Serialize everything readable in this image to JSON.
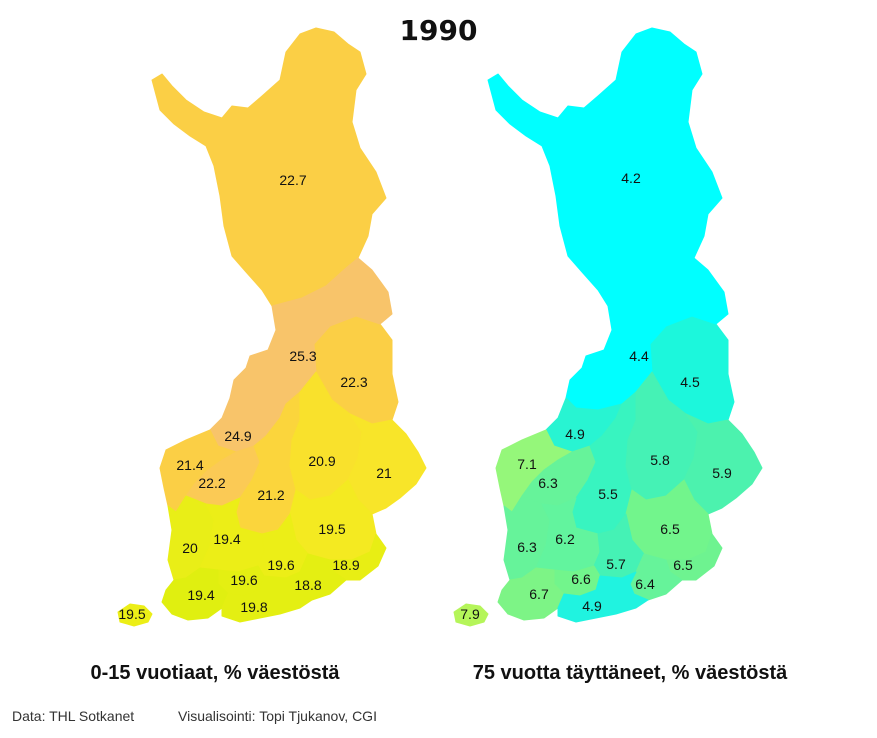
{
  "title": "1990",
  "maps": [
    {
      "caption": "0-15 vuotiaat, % väestöstä",
      "regions": [
        {
          "id": "lappi",
          "value": "22.7",
          "color": "#fbcf45"
        },
        {
          "id": "kainuu",
          "value": "22.3",
          "color": "#fbcf45"
        },
        {
          "id": "pohjois-pohjanmaa",
          "value": "25.3",
          "color": "#f8c46a"
        },
        {
          "id": "keski-pohjanmaa",
          "value": "24.9",
          "color": "#f8c46a"
        },
        {
          "id": "pohjanmaa",
          "value": "21.4",
          "color": "#fbcf45"
        },
        {
          "id": "etela-pohjanmaa",
          "value": "22.2",
          "color": "#fbca55"
        },
        {
          "id": "keski-suomi",
          "value": "21.2",
          "color": "#fbd53c"
        },
        {
          "id": "pohjois-savo",
          "value": "20.9",
          "color": "#f9e12c"
        },
        {
          "id": "pohjois-karjala",
          "value": "21",
          "color": "#f8e529"
        },
        {
          "id": "etela-savo",
          "value": "19.5",
          "color": "#f4ea21"
        },
        {
          "id": "satakunta",
          "value": "20",
          "color": "#e9ee17"
        },
        {
          "id": "pirkanmaa",
          "value": "19.4",
          "color": "#ecee17"
        },
        {
          "id": "paijat-hame",
          "value": "19.6",
          "color": "#ecee17"
        },
        {
          "id": "etela-karjala",
          "value": "18.9",
          "color": "#e8ee14"
        },
        {
          "id": "kanta-hame",
          "value": "19.6",
          "color": "#e4ef12"
        },
        {
          "id": "kymenlaakso",
          "value": "18.8",
          "color": "#e4ef12"
        },
        {
          "id": "varsinais-suomi",
          "value": "19.4",
          "color": "#e0ef10"
        },
        {
          "id": "uusimaa",
          "value": "19.8",
          "color": "#e4ef12"
        },
        {
          "id": "ahvenanmaa",
          "value": "19.5",
          "color": "#ecee17"
        }
      ]
    },
    {
      "caption": "75 vuotta täyttäneet, % väestöstä",
      "regions": [
        {
          "id": "lappi",
          "value": "4.2",
          "color": "#00ffff"
        },
        {
          "id": "kainuu",
          "value": "4.5",
          "color": "#1cf7dc"
        },
        {
          "id": "pohjois-pohjanmaa",
          "value": "4.4",
          "color": "#00ffff"
        },
        {
          "id": "keski-pohjanmaa",
          "value": "4.9",
          "color": "#28f4d2"
        },
        {
          "id": "pohjanmaa",
          "value": "7.1",
          "color": "#95f77a"
        },
        {
          "id": "etela-pohjanmaa",
          "value": "6.3",
          "color": "#66f39a"
        },
        {
          "id": "keski-suomi",
          "value": "5.5",
          "color": "#38f4c0"
        },
        {
          "id": "pohjois-savo",
          "value": "5.8",
          "color": "#45f2b5"
        },
        {
          "id": "pohjois-karjala",
          "value": "5.9",
          "color": "#4cf2ae"
        },
        {
          "id": "etela-savo",
          "value": "6.5",
          "color": "#72f58c"
        },
        {
          "id": "satakunta",
          "value": "6.3",
          "color": "#66f39a"
        },
        {
          "id": "pirkanmaa",
          "value": "6.2",
          "color": "#62f49e"
        },
        {
          "id": "paijat-hame",
          "value": "5.7",
          "color": "#45f2b5"
        },
        {
          "id": "etela-karjala",
          "value": "6.5",
          "color": "#6ef390"
        },
        {
          "id": "kanta-hame",
          "value": "6.6",
          "color": "#72f58c"
        },
        {
          "id": "kymenlaakso",
          "value": "6.4",
          "color": "#66f39a"
        },
        {
          "id": "varsinais-suomi",
          "value": "6.7",
          "color": "#7df486"
        },
        {
          "id": "uusimaa",
          "value": "4.9",
          "color": "#20f3e0"
        },
        {
          "id": "ahvenanmaa",
          "value": "7.9",
          "color": "#b5f55a"
        }
      ]
    }
  ],
  "footer": {
    "source": "Data: THL Sotkanet",
    "credit": "Visualisointi: Topi Tjukanov, CGI"
  }
}
